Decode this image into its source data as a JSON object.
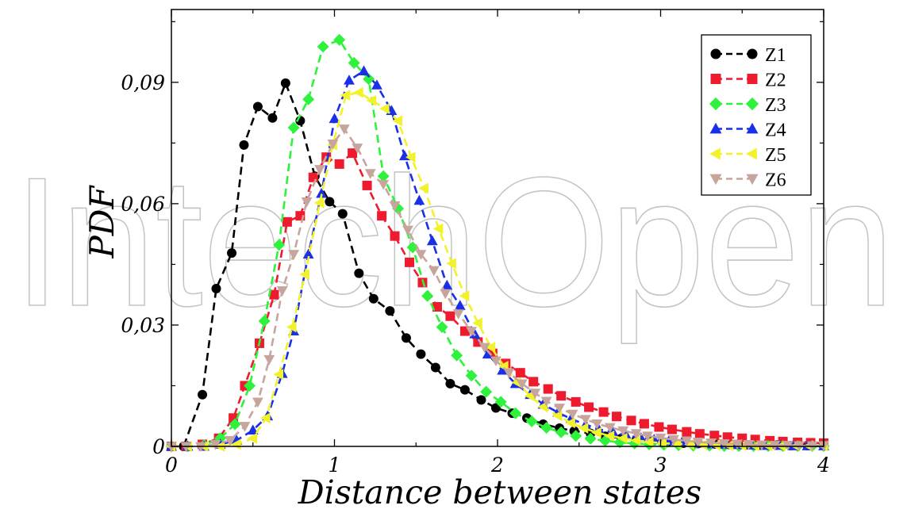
{
  "watermark": {
    "text": "IntechOpen",
    "color": "#bfbfbf"
  },
  "chart_data": {
    "type": "line",
    "title": "",
    "xlabel": "Distance between states",
    "ylabel": "PDF",
    "xlim": [
      0,
      4
    ],
    "ylim": [
      0,
      0.108
    ],
    "x_ticks": [
      0,
      1,
      2,
      3,
      4
    ],
    "x_tick_labels": [
      "0",
      "1",
      "2",
      "3",
      "4"
    ],
    "y_ticks": [
      0,
      0.03,
      0.06,
      0.09
    ],
    "y_tick_labels": [
      "0",
      "0,03",
      "0,06",
      "0,09"
    ],
    "grid": false,
    "legend_position": "top-right",
    "series": [
      {
        "name": "Z1",
        "color": "#000000",
        "marker": "circle",
        "x": [
          0,
          0.075,
          0.19,
          0.275,
          0.37,
          0.445,
          0.53,
          0.62,
          0.7,
          0.79,
          0.88,
          0.97,
          1.05,
          1.15,
          1.24,
          1.34,
          1.44,
          1.53,
          1.62,
          1.71,
          1.8,
          1.9,
          1.99,
          2.09,
          2.18,
          2.28,
          2.38,
          2.47,
          2.57,
          2.66,
          2.76,
          2.85,
          2.95,
          3.04,
          3.14,
          3.23,
          3.33,
          3.42,
          3.52,
          3.61,
          3.71,
          3.8,
          3.9,
          4.0
        ],
        "y": [
          0,
          0,
          0.0128,
          0.039,
          0.0478,
          0.0745,
          0.084,
          0.0812,
          0.0898,
          0.0805,
          0.0668,
          0.0605,
          0.0575,
          0.0428,
          0.0365,
          0.0335,
          0.0268,
          0.0228,
          0.0195,
          0.0155,
          0.014,
          0.0115,
          0.0095,
          0.0082,
          0.007,
          0.0055,
          0.0045,
          0.0038,
          0.0032,
          0.0025,
          0.002,
          0.0016,
          0.0013,
          0.001,
          0.0008,
          0.0007,
          0.0006,
          0.0005,
          0.0004,
          0.0003,
          0.0003,
          0.0002,
          0.0002,
          0.0002
        ]
      },
      {
        "name": "Z2",
        "color": "#ee1b2e",
        "marker": "square",
        "x": [
          0,
          0.09,
          0.19,
          0.29,
          0.38,
          0.45,
          0.54,
          0.63,
          0.71,
          0.79,
          0.87,
          0.95,
          1.03,
          1.11,
          1.2,
          1.29,
          1.37,
          1.46,
          1.54,
          1.63,
          1.71,
          1.8,
          1.88,
          1.97,
          2.05,
          2.14,
          2.22,
          2.31,
          2.39,
          2.48,
          2.56,
          2.65,
          2.73,
          2.82,
          2.9,
          2.99,
          3.07,
          3.16,
          3.24,
          3.33,
          3.41,
          3.5,
          3.58,
          3.67,
          3.75,
          3.84,
          3.92,
          4.0
        ],
        "y": [
          0,
          0,
          0.0005,
          0.002,
          0.007,
          0.015,
          0.0255,
          0.0375,
          0.0555,
          0.057,
          0.0665,
          0.0715,
          0.0698,
          0.0725,
          0.0645,
          0.057,
          0.052,
          0.0455,
          0.0405,
          0.0345,
          0.0322,
          0.0285,
          0.0258,
          0.023,
          0.0205,
          0.0182,
          0.016,
          0.0142,
          0.0125,
          0.011,
          0.0097,
          0.0085,
          0.0074,
          0.0064,
          0.0056,
          0.0048,
          0.0042,
          0.0036,
          0.0031,
          0.0027,
          0.0023,
          0.002,
          0.0017,
          0.0014,
          0.0012,
          0.001,
          0.0009,
          0.0008
        ]
      },
      {
        "name": "Z3",
        "color": "#2ef23c",
        "marker": "diamond",
        "x": [
          0,
          0.1,
          0.2,
          0.3,
          0.39,
          0.48,
          0.57,
          0.66,
          0.75,
          0.84,
          0.93,
          1.03,
          1.12,
          1.21,
          1.3,
          1.39,
          1.48,
          1.57,
          1.66,
          1.75,
          1.84,
          1.93,
          2.02,
          2.11,
          2.21,
          2.3,
          2.39,
          2.48,
          2.57,
          2.66,
          2.75,
          2.84,
          2.93,
          3.02,
          3.11,
          3.2,
          3.3,
          3.39,
          3.48,
          3.57,
          3.66,
          3.75,
          3.84,
          3.93,
          4.0
        ],
        "y": [
          0,
          0,
          0.0003,
          0.002,
          0.0055,
          0.015,
          0.031,
          0.0498,
          0.0788,
          0.0858,
          0.0988,
          0.1005,
          0.0948,
          0.0908,
          0.0668,
          0.0588,
          0.0492,
          0.0372,
          0.0295,
          0.0225,
          0.0175,
          0.0135,
          0.011,
          0.0082,
          0.0062,
          0.0046,
          0.0035,
          0.0026,
          0.0019,
          0.0014,
          0.001,
          0.0007,
          0.0005,
          0.0004,
          0.0003,
          0.0002,
          0.0002,
          0.0001,
          0.0001,
          0.0001,
          0.0001,
          0.0001,
          0.0001,
          0.0001,
          0.0001
        ]
      },
      {
        "name": "Z4",
        "color": "#1a2fe8",
        "marker": "triangle-up",
        "x": [
          0,
          0.1,
          0.2,
          0.3,
          0.4,
          0.5,
          0.59,
          0.68,
          0.75,
          0.84,
          0.92,
          1.0,
          1.09,
          1.18,
          1.26,
          1.35,
          1.43,
          1.52,
          1.6,
          1.69,
          1.77,
          1.86,
          1.94,
          2.03,
          2.11,
          2.2,
          2.28,
          2.37,
          2.45,
          2.54,
          2.62,
          2.71,
          2.79,
          2.88,
          2.96,
          3.05,
          3.13,
          3.22,
          3.3,
          3.39,
          3.47,
          3.56,
          3.64,
          3.73,
          3.81,
          3.9,
          4.0
        ],
        "y": [
          0,
          0,
          0,
          0.0005,
          0.0015,
          0.004,
          0.0075,
          0.018,
          0.0285,
          0.0475,
          0.0625,
          0.081,
          0.0905,
          0.0928,
          0.0893,
          0.083,
          0.0718,
          0.0608,
          0.0508,
          0.0398,
          0.0348,
          0.0278,
          0.0228,
          0.0188,
          0.0155,
          0.0128,
          0.0104,
          0.0084,
          0.0068,
          0.0054,
          0.0043,
          0.0034,
          0.0027,
          0.0021,
          0.0017,
          0.0013,
          0.001,
          0.0008,
          0.0006,
          0.0005,
          0.0004,
          0.0003,
          0.0002,
          0.0002,
          0.0001,
          0.0001,
          0.0001
        ]
      },
      {
        "name": "Z5",
        "color": "#f2f22a",
        "marker": "triangle-left",
        "x": [
          0,
          0.1,
          0.2,
          0.3,
          0.4,
          0.5,
          0.58,
          0.66,
          0.74,
          0.82,
          0.91,
          0.99,
          1.07,
          1.15,
          1.23,
          1.31,
          1.39,
          1.47,
          1.55,
          1.64,
          1.72,
          1.8,
          1.88,
          1.96,
          2.04,
          2.12,
          2.2,
          2.28,
          2.37,
          2.45,
          2.53,
          2.61,
          2.69,
          2.77,
          2.85,
          2.93,
          3.01,
          3.1,
          3.18,
          3.26,
          3.34,
          3.42,
          3.5,
          3.58,
          3.66,
          3.74,
          3.83,
          3.91,
          4.0
        ],
        "y": [
          0,
          0,
          0,
          0,
          0.0005,
          0.002,
          0.007,
          0.0178,
          0.0295,
          0.0425,
          0.0602,
          0.0745,
          0.0868,
          0.0875,
          0.0855,
          0.0835,
          0.0805,
          0.0715,
          0.0638,
          0.0538,
          0.0452,
          0.0372,
          0.0305,
          0.0245,
          0.0198,
          0.0158,
          0.0125,
          0.0098,
          0.0076,
          0.0058,
          0.0045,
          0.0034,
          0.0026,
          0.002,
          0.0015,
          0.0011,
          0.0008,
          0.0006,
          0.0005,
          0.0004,
          0.0003,
          0.0002,
          0.0002,
          0.0001,
          0.0001,
          0.0001,
          0.0001,
          0.0001,
          0.0001
        ]
      },
      {
        "name": "Z6",
        "color": "#c7a49c",
        "marker": "triangle-down",
        "x": [
          0,
          0.09,
          0.18,
          0.27,
          0.36,
          0.45,
          0.53,
          0.6,
          0.68,
          0.75,
          0.83,
          0.91,
          0.99,
          1.06,
          1.14,
          1.22,
          1.3,
          1.37,
          1.45,
          1.53,
          1.61,
          1.68,
          1.76,
          1.84,
          1.92,
          1.99,
          2.07,
          2.15,
          2.23,
          2.3,
          2.38,
          2.46,
          2.54,
          2.61,
          2.69,
          2.77,
          2.85,
          2.92,
          3.0,
          3.08,
          3.16,
          3.23,
          3.31,
          3.39,
          3.47,
          3.54,
          3.62,
          3.7,
          3.78,
          3.85,
          3.93,
          4.0
        ],
        "y": [
          0,
          0,
          0,
          0.0005,
          0.0015,
          0.005,
          0.011,
          0.0215,
          0.0385,
          0.0475,
          0.0605,
          0.0685,
          0.0748,
          0.0785,
          0.0738,
          0.0675,
          0.0648,
          0.0595,
          0.0535,
          0.0475,
          0.0435,
          0.0378,
          0.0328,
          0.0285,
          0.0245,
          0.0212,
          0.0182,
          0.0155,
          0.0132,
          0.0112,
          0.0095,
          0.008,
          0.0067,
          0.0056,
          0.0047,
          0.0039,
          0.0032,
          0.0026,
          0.0021,
          0.0017,
          0.0014,
          0.0011,
          0.0009,
          0.0007,
          0.0006,
          0.0005,
          0.0004,
          0.0003,
          0.0003,
          0.0002,
          0.0002,
          0.0002
        ]
      }
    ]
  }
}
